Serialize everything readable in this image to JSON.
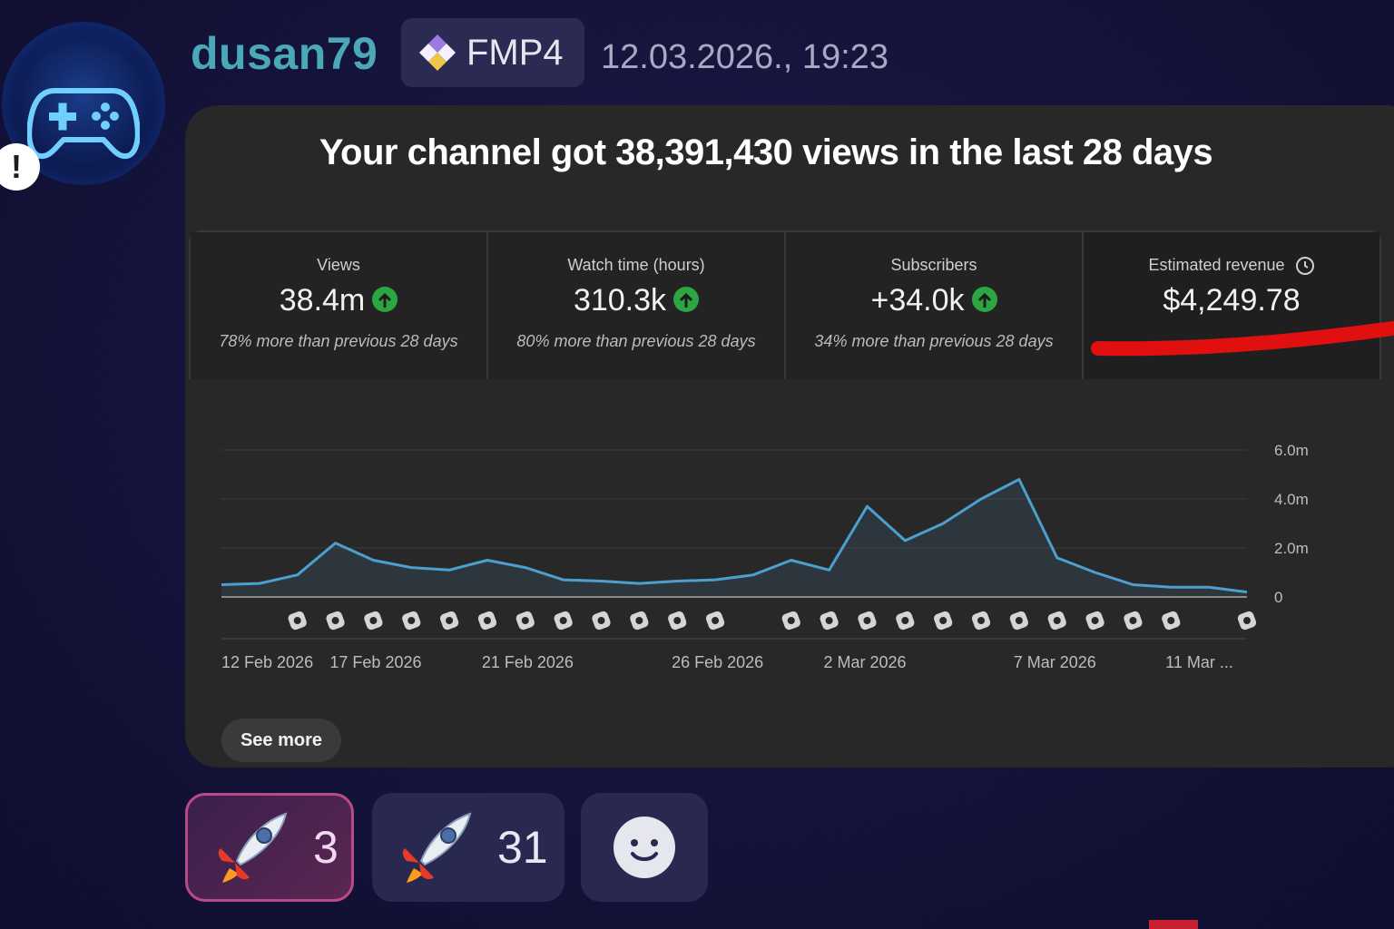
{
  "message": {
    "username": "dusan79",
    "tag": "FMP4",
    "timestamp": "12.03.2026., 19:23",
    "alert_badge": "!"
  },
  "card": {
    "headline": "Your channel got 38,391,430 views in the last 28 days",
    "stats": [
      {
        "label": "Views",
        "value": "38.4m",
        "note": "78% more than previous 28 days"
      },
      {
        "label": "Watch time (hours)",
        "value": "310.3k",
        "note": "80% more than previous 28 days"
      },
      {
        "label": "Subscribers",
        "value": "+34.0k",
        "note": "34% more than previous 28 days"
      },
      {
        "label": "Estimated revenue",
        "value": "$4,249.78",
        "note": ""
      }
    ],
    "see_more_label": "See more",
    "annotation_color": "#e01010"
  },
  "chart_data": {
    "type": "area",
    "title": "",
    "xlabel": "",
    "ylabel": "",
    "ylim": [
      0,
      6000000
    ],
    "yticks": [
      "6.0m",
      "4.0m",
      "2.0m",
      "0"
    ],
    "xtick_labels": [
      "12 Feb 2026",
      "17 Feb 2026",
      "21 Feb 2026",
      "26 Feb 2026",
      "2 Mar 2026",
      "7 Mar 2026",
      "11 Mar ..."
    ],
    "xtick_positions": [
      0,
      4,
      8,
      13,
      17,
      22,
      26
    ],
    "series": [
      {
        "values": [
          500000,
          550000,
          900000,
          2200000,
          1500000,
          1200000,
          1100000,
          1500000,
          1200000,
          700000,
          650000,
          550000,
          650000,
          700000,
          900000,
          1500000,
          1100000,
          3700000,
          2300000,
          3000000,
          4000000,
          4800000,
          1600000,
          1000000,
          500000,
          400000,
          400000,
          200000
        ],
        "color": "#4c9fcf"
      }
    ],
    "video_markers": [
      2,
      3,
      4,
      5,
      6,
      7,
      8,
      9,
      10,
      11,
      12,
      13,
      15,
      16,
      17,
      18,
      19,
      20,
      21,
      22,
      23,
      24,
      25,
      27
    ],
    "grid": true
  }
}
